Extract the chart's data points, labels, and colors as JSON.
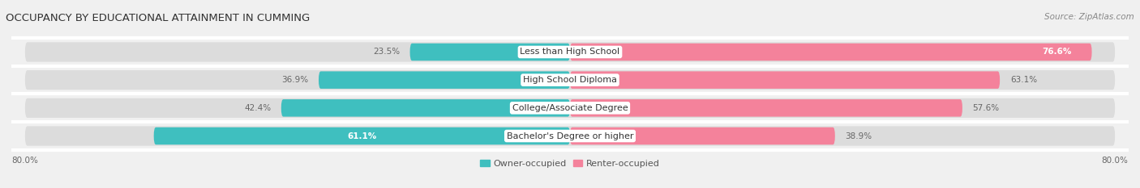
{
  "title": "OCCUPANCY BY EDUCATIONAL ATTAINMENT IN CUMMING",
  "source": "Source: ZipAtlas.com",
  "categories": [
    "Less than High School",
    "High School Diploma",
    "College/Associate Degree",
    "Bachelor's Degree or higher"
  ],
  "owner_values": [
    23.5,
    36.9,
    42.4,
    61.1
  ],
  "renter_values": [
    76.6,
    63.1,
    57.6,
    38.9
  ],
  "owner_color": "#3FBFBF",
  "renter_color": "#F4829B",
  "bar_height": 0.62,
  "xlim_left": -82,
  "xlim_right": 82,
  "background_color": "#f0f0f0",
  "bar_background_color": "#dcdcdc",
  "row_bg_color": "#e8e8e8",
  "title_fontsize": 9.5,
  "source_fontsize": 7.5,
  "label_fontsize": 8,
  "value_fontsize": 7.5,
  "legend_fontsize": 8,
  "legend_label_owner": "Owner-occupied",
  "legend_label_renter": "Renter-occupied"
}
